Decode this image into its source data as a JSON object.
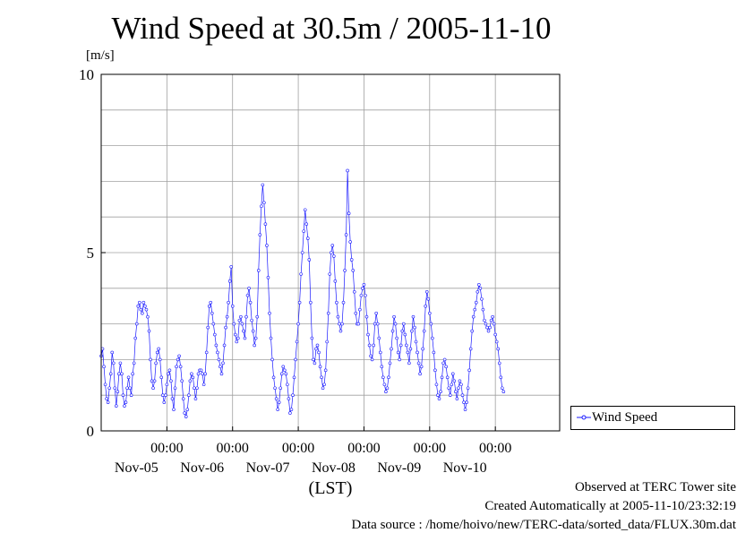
{
  "chart_data": {
    "type": "line",
    "title": "Wind Speed at 30.5m / 2005-11-10",
    "ylabel": "[m/s]",
    "xlabel": "(LST)",
    "ylim": [
      0,
      10
    ],
    "yticks": [
      "0",
      "5",
      "10"
    ],
    "xlim": [
      "2005-11-04 00:00",
      "2005-11-10 23:30"
    ],
    "xtick_time_label": "00:00",
    "xticks": [
      "2005-11-05",
      "2005-11-06",
      "2005-11-07",
      "2005-11-08",
      "2005-11-09",
      "2005-11-10"
    ],
    "xtick_date_labels": [
      "Nov-05",
      "Nov-06",
      "Nov-07",
      "Nov-08",
      "Nov-09",
      "Nov-10"
    ],
    "grid": true,
    "legend_position": "outside right",
    "color": "#1a1aff",
    "series": [
      {
        "name": "Wind Speed",
        "x_start": "2005-11-04 00:00",
        "x_step_minutes": 30,
        "values": [
          2.1,
          2.3,
          1.8,
          1.3,
          0.9,
          0.8,
          1.2,
          1.6,
          2.2,
          1.9,
          1.2,
          0.7,
          1.1,
          1.6,
          1.9,
          1.6,
          1.0,
          0.7,
          0.8,
          1.2,
          1.5,
          1.2,
          1.0,
          1.6,
          1.9,
          2.6,
          3.0,
          3.5,
          3.6,
          3.4,
          3.3,
          3.6,
          3.5,
          3.4,
          3.2,
          2.8,
          2.0,
          1.4,
          1.2,
          1.4,
          1.9,
          2.2,
          2.3,
          2.0,
          1.5,
          1.0,
          0.8,
          1.0,
          1.3,
          1.6,
          1.7,
          1.4,
          0.9,
          0.6,
          1.2,
          1.8,
          2.0,
          2.1,
          1.8,
          1.4,
          0.9,
          0.5,
          0.4,
          0.6,
          1.0,
          1.4,
          1.6,
          1.5,
          1.2,
          0.9,
          1.2,
          1.6,
          1.7,
          1.7,
          1.6,
          1.3,
          1.6,
          2.2,
          2.9,
          3.5,
          3.6,
          3.3,
          3.0,
          2.7,
          2.4,
          2.2,
          2.0,
          1.8,
          1.6,
          1.9,
          2.4,
          2.9,
          3.2,
          3.6,
          4.2,
          4.6,
          3.5,
          3.0,
          2.7,
          2.5,
          2.6,
          3.1,
          3.2,
          3.0,
          2.8,
          2.6,
          3.2,
          3.8,
          4.0,
          3.6,
          3.1,
          2.8,
          2.4,
          2.6,
          3.2,
          4.5,
          5.5,
          6.3,
          6.9,
          6.4,
          5.8,
          5.2,
          4.3,
          3.3,
          2.6,
          2.0,
          1.5,
          1.2,
          0.9,
          0.6,
          0.8,
          1.2,
          1.6,
          1.8,
          1.7,
          1.6,
          1.3,
          0.9,
          0.5,
          0.6,
          1.0,
          1.5,
          2.0,
          2.5,
          3.0,
          3.6,
          4.4,
          5.0,
          5.6,
          6.2,
          5.8,
          5.4,
          4.8,
          3.6,
          2.6,
          2.0,
          1.9,
          2.3,
          2.4,
          2.2,
          1.8,
          1.5,
          1.2,
          1.3,
          1.7,
          2.5,
          3.3,
          4.4,
          5.0,
          5.2,
          4.9,
          4.2,
          3.6,
          3.2,
          3.0,
          2.8,
          3.0,
          3.6,
          4.5,
          5.5,
          7.3,
          6.1,
          5.3,
          4.8,
          4.5,
          3.9,
          3.3,
          3.0,
          3.0,
          3.4,
          3.8,
          4.0,
          4.1,
          3.8,
          3.2,
          2.7,
          2.4,
          2.1,
          2.0,
          2.4,
          3.0,
          3.3,
          3.0,
          2.6,
          2.2,
          1.8,
          1.5,
          1.3,
          1.1,
          1.2,
          1.5,
          1.9,
          2.3,
          2.8,
          3.2,
          3.0,
          2.6,
          2.2,
          2.0,
          2.4,
          2.8,
          3.0,
          2.7,
          2.4,
          2.2,
          1.9,
          2.3,
          2.8,
          3.2,
          2.9,
          2.5,
          2.2,
          1.9,
          1.6,
          1.8,
          2.3,
          2.8,
          3.5,
          3.9,
          3.7,
          3.3,
          3.0,
          2.6,
          2.2,
          1.7,
          1.3,
          1.0,
          0.9,
          1.1,
          1.5,
          1.9,
          2.0,
          1.8,
          1.5,
          1.2,
          1.0,
          1.3,
          1.6,
          1.4,
          1.1,
          0.9,
          1.2,
          1.4,
          1.3,
          1.0,
          0.8,
          0.6,
          0.8,
          1.2,
          1.7,
          2.3,
          2.8,
          3.2,
          3.4,
          3.6,
          3.9,
          4.1,
          4.0,
          3.7,
          3.4,
          3.1,
          3.0,
          2.9,
          2.8,
          2.9,
          3.1,
          3.2,
          3.0,
          2.7,
          2.5,
          2.3,
          1.9,
          1.5,
          1.2,
          1.1
        ]
      }
    ]
  },
  "credits": {
    "observed": "Observed at TERC Tower site",
    "created": "Created Automatically at 2005-11-10/23:32:19",
    "source": "Data source : /home/hoivo/new/TERC-data/sorted_data/FLUX.30m.dat"
  }
}
